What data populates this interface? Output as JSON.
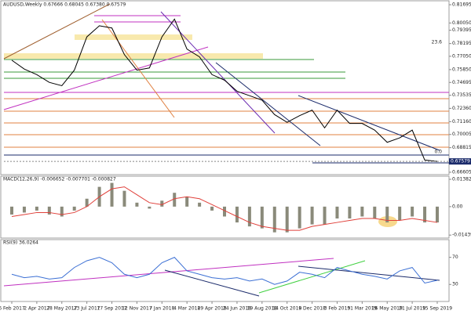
{
  "chart_data": [
    {
      "type": "line",
      "title": "AUDUSD,Weekly  0.67666 0.68045 0.67380 0.67579",
      "categories": [
        "6 Feb 2017",
        null,
        "2 Apr 2017",
        null,
        "28 May 2017",
        null,
        "23 Jul 2017",
        null,
        "17 Sep 2017",
        null,
        "12 Nov 2017",
        null,
        "7 Jan 2018",
        null,
        "4 Mar 2018",
        null,
        "29 Apr 2018",
        null,
        "24 Jun 2018",
        null,
        "19 Aug 2018",
        null,
        "14 Oct 2018",
        null,
        "9 Dec 2018",
        null,
        "3 Feb 2019",
        null,
        "31 Mar 2019",
        null,
        "26 May 2019",
        null,
        "21 Jul 2019",
        null,
        "15 Sep 2019"
      ],
      "values": [
        0.767,
        0.759,
        0.754,
        0.747,
        0.744,
        0.758,
        0.788,
        0.798,
        0.796,
        0.772,
        0.758,
        0.76,
        0.788,
        0.804,
        0.777,
        0.77,
        0.754,
        0.749,
        0.739,
        0.735,
        0.731,
        0.718,
        0.711,
        0.717,
        0.722,
        0.706,
        0.722,
        0.71,
        0.71,
        0.704,
        0.693,
        0.697,
        0.704,
        0.677,
        0.6758
      ],
      "color": "#000000",
      "ylim": [
        0.6646,
        0.8198
      ],
      "yticks": [
        {
          "value": 0.81695,
          "label": "0.81695"
        },
        {
          "value": 0.8005,
          "label": "0.80050"
        },
        {
          "value": 0.79395,
          "label": "0.79395"
        },
        {
          "value": 0.78195,
          "label": "0.78195"
        },
        {
          "value": 0.7705,
          "label": "0.77050"
        },
        {
          "value": 0.7585,
          "label": "0.75850"
        },
        {
          "value": 0.74695,
          "label": "0.74695"
        },
        {
          "value": 0.73535,
          "label": "0.73535"
        },
        {
          "value": 0.7236,
          "label": "0.72360"
        },
        {
          "value": 0.7116,
          "label": "0.71160"
        },
        {
          "value": 0.70005,
          "label": "0.70005"
        },
        {
          "value": 0.68815,
          "label": "0.68815"
        },
        {
          "value": 0.66605,
          "label": "0.66605"
        }
      ],
      "last_price": 0.67579,
      "annotations": [
        "23.6",
        "0.0"
      ]
    },
    {
      "type": "bar",
      "title": "MACD(12,26,9) -0.006652 -0.007701 -0.000827",
      "values": [
        -0.004,
        -0.003,
        -0.002,
        -0.004,
        -0.005,
        -0.002,
        0.004,
        0.01,
        0.012,
        0.008,
        0.002,
        -0.001,
        0.003,
        0.007,
        0.005,
        0.002,
        -0.002,
        -0.005,
        -0.008,
        -0.01,
        -0.011,
        -0.013,
        -0.013,
        -0.011,
        -0.009,
        -0.009,
        -0.006,
        -0.006,
        -0.005,
        -0.006,
        -0.008,
        -0.007,
        -0.005,
        -0.008,
        -0.008
      ],
      "color": "#8a8a7a",
      "signal": [
        -0.005,
        -0.004,
        -0.003,
        -0.003,
        -0.004,
        -0.003,
        0.0,
        0.005,
        0.009,
        0.01,
        0.006,
        0.002,
        0.001,
        0.004,
        0.005,
        0.004,
        0.001,
        -0.002,
        -0.005,
        -0.008,
        -0.01,
        -0.011,
        -0.012,
        -0.012,
        -0.01,
        -0.009,
        -0.008,
        -0.007,
        -0.006,
        -0.006,
        -0.007,
        -0.007,
        -0.006,
        -0.007,
        -0.008
      ],
      "signal_color": "#e0403a",
      "ylim": [
        -0.0155,
        0.015
      ],
      "yticks": [
        0.013821,
        {
          "value": 0,
          "label": "0.00"
        },
        -0.014396
      ]
    },
    {
      "type": "line",
      "title": "RSI(9) 36.0264",
      "values": [
        45,
        40,
        42,
        38,
        40,
        55,
        65,
        70,
        62,
        45,
        40,
        45,
        62,
        70,
        50,
        45,
        40,
        38,
        40,
        35,
        38,
        30,
        35,
        48,
        45,
        40,
        55,
        50,
        45,
        42,
        38,
        50,
        55,
        32,
        36
      ],
      "color": "#3b6fd4",
      "ylim": [
        6,
        95
      ],
      "yticks": [
        70,
        30
      ]
    }
  ]
}
